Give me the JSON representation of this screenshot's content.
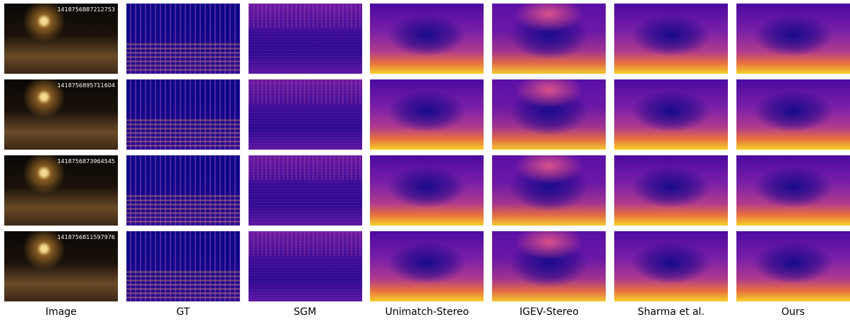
{
  "columns": [
    "Image",
    "GT",
    "SGM",
    "Unimatch-Stereo",
    "IGEV-Stereo",
    "Sharma et al.",
    "Ours"
  ],
  "rows": [
    {
      "timestamp": "1418756887212753"
    },
    {
      "timestamp": "1418756895711604"
    },
    {
      "timestamp": "1418756873964545"
    },
    {
      "timestamp": "1418756811597976"
    }
  ]
}
